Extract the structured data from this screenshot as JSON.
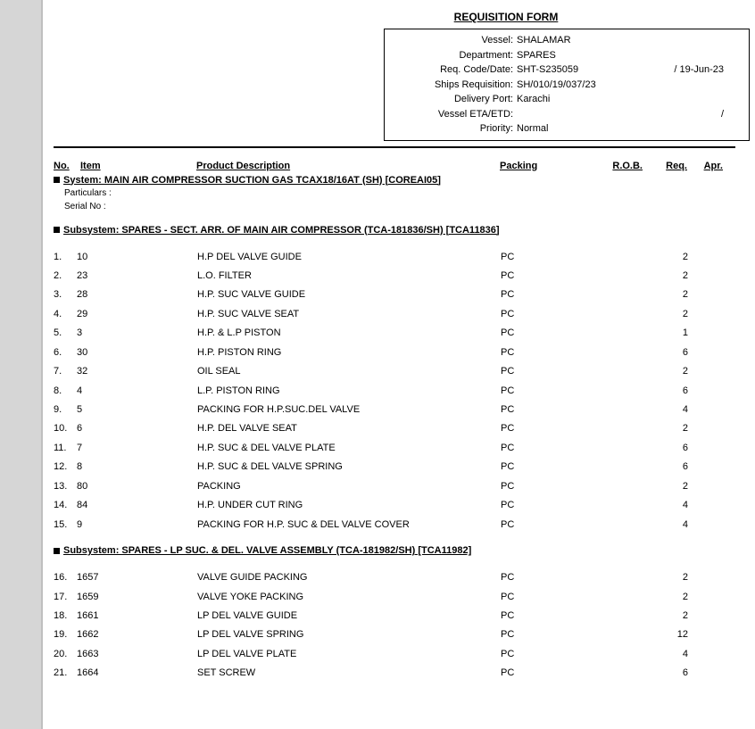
{
  "title": "REQUISITION FORM",
  "info": {
    "vessel_label": "Vessel:",
    "vessel": "SHALAMAR",
    "department_label": "Department:",
    "department": "SPARES",
    "reqcode_label": "Req. Code/Date:",
    "reqcode": "SHT-S235059",
    "reqdate": "/ 19-Jun-23",
    "shipsreq_label": "Ships Requisition:",
    "shipsreq": "SH/010/19/037/23",
    "delport_label": "Delivery Port:",
    "delport": "Karachi",
    "eta_label": "Vessel ETA/ETD:",
    "eta": "",
    "eta_slash": "/",
    "priority_label": "Priority:",
    "priority": "Normal"
  },
  "headers": {
    "no": "No.",
    "item": "Item",
    "desc": "Product Description",
    "pack": "Packing",
    "rob": "R.O.B.",
    "req": "Req.",
    "apr": "Apr."
  },
  "system": "System: MAIN AIR COMPRESSOR SUCTION GAS TCAX18/16AT (SH) [COREAI05]",
  "particulars": "Particulars :",
  "serial": "Serial No :",
  "subsystems": [
    {
      "title": "Subsystem: SPARES - SECT. ARR. OF MAIN AIR COMPRESSOR (TCA-181836/SH) [TCA11836]",
      "rows": [
        {
          "no": "1.",
          "item": "10",
          "desc": "H.P DEL VALVE GUIDE",
          "pack": "PC",
          "rob": "",
          "req": "2",
          "apr": ""
        },
        {
          "no": "2.",
          "item": "23",
          "desc": "L.O. FILTER",
          "pack": "PC",
          "rob": "",
          "req": "2",
          "apr": ""
        },
        {
          "no": "3.",
          "item": "28",
          "desc": "H.P. SUC VALVE GUIDE",
          "pack": "PC",
          "rob": "",
          "req": "2",
          "apr": ""
        },
        {
          "no": "4.",
          "item": "29",
          "desc": "H.P. SUC VALVE SEAT",
          "pack": "PC",
          "rob": "",
          "req": "2",
          "apr": ""
        },
        {
          "no": "5.",
          "item": "3",
          "desc": "H.P. & L.P PISTON",
          "pack": "PC",
          "rob": "",
          "req": "1",
          "apr": ""
        },
        {
          "no": "6.",
          "item": "30",
          "desc": "H.P. PISTON RING",
          "pack": "PC",
          "rob": "",
          "req": "6",
          "apr": ""
        },
        {
          "no": "7.",
          "item": "32",
          "desc": "OIL SEAL",
          "pack": "PC",
          "rob": "",
          "req": "2",
          "apr": ""
        },
        {
          "no": "8.",
          "item": "4",
          "desc": "L.P. PISTON RING",
          "pack": "PC",
          "rob": "",
          "req": "6",
          "apr": ""
        },
        {
          "no": "9.",
          "item": "5",
          "desc": "PACKING FOR H.P.SUC.DEL VALVE",
          "pack": "PC",
          "rob": "",
          "req": "4",
          "apr": ""
        },
        {
          "no": "10.",
          "item": "6",
          "desc": "H.P. DEL VALVE SEAT",
          "pack": "PC",
          "rob": "",
          "req": "2",
          "apr": ""
        },
        {
          "no": "11.",
          "item": "7",
          "desc": "H.P. SUC & DEL VALVE PLATE",
          "pack": "PC",
          "rob": "",
          "req": "6",
          "apr": ""
        },
        {
          "no": "12.",
          "item": "8",
          "desc": "H.P. SUC & DEL VALVE SPRING",
          "pack": "PC",
          "rob": "",
          "req": "6",
          "apr": ""
        },
        {
          "no": "13.",
          "item": "80",
          "desc": "PACKING",
          "pack": "PC",
          "rob": "",
          "req": "2",
          "apr": ""
        },
        {
          "no": "14.",
          "item": "84",
          "desc": "H.P. UNDER CUT RING",
          "pack": "PC",
          "rob": "",
          "req": "4",
          "apr": ""
        },
        {
          "no": "15.",
          "item": "9",
          "desc": "PACKING FOR H.P. SUC & DEL VALVE COVER",
          "pack": "PC",
          "rob": "",
          "req": "4",
          "apr": ""
        }
      ]
    },
    {
      "title": "Subsystem: SPARES - LP SUC. & DEL. VALVE ASSEMBLY (TCA-181982/SH) [TCA11982]",
      "rows": [
        {
          "no": "16.",
          "item": "1657",
          "desc": "VALVE GUIDE PACKING",
          "pack": "PC",
          "rob": "",
          "req": "2",
          "apr": ""
        },
        {
          "no": "17.",
          "item": "1659",
          "desc": "VALVE YOKE PACKING",
          "pack": "PC",
          "rob": "",
          "req": "2",
          "apr": ""
        },
        {
          "no": "18.",
          "item": "1661",
          "desc": "LP DEL VALVE GUIDE",
          "pack": "PC",
          "rob": "",
          "req": "2",
          "apr": ""
        },
        {
          "no": "19.",
          "item": "1662",
          "desc": "LP DEL VALVE SPRING",
          "pack": "PC",
          "rob": "",
          "req": "12",
          "apr": ""
        },
        {
          "no": "20.",
          "item": "1663",
          "desc": "LP DEL VALVE PLATE",
          "pack": "PC",
          "rob": "",
          "req": "4",
          "apr": ""
        },
        {
          "no": "21.",
          "item": "1664",
          "desc": "SET SCREW",
          "pack": "PC",
          "rob": "",
          "req": "6",
          "apr": ""
        }
      ]
    }
  ]
}
